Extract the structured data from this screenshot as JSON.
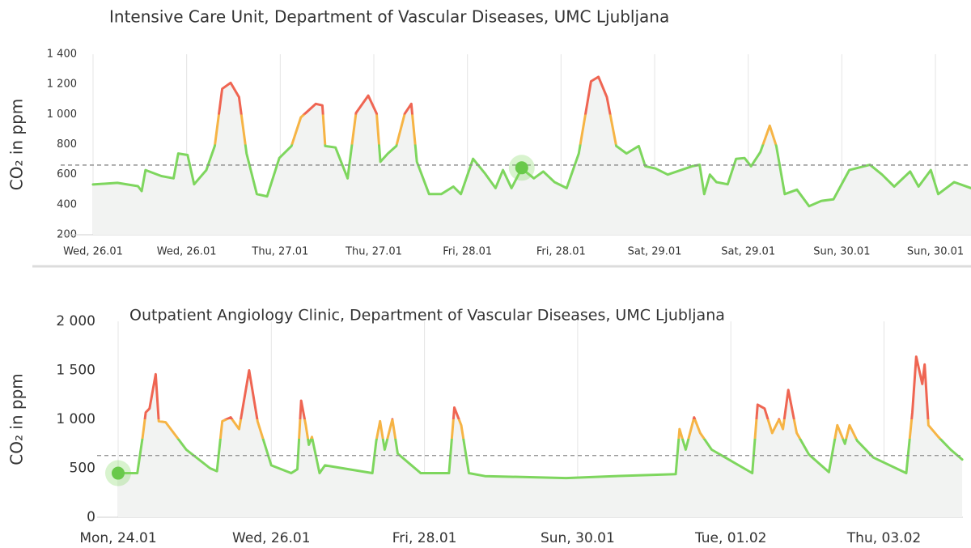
{
  "chart_data": [
    {
      "type": "line",
      "title": "Intensive Care Unit, Department of Vascular Diseases, UMC Ljubljana",
      "y_label": "CO₂ in ppm",
      "x": [
        0,
        0.26,
        0.48,
        0.52,
        0.56,
        0.73,
        0.86,
        0.91,
        1.01,
        1.08,
        1.21,
        1.3,
        1.38,
        1.47,
        1.56,
        1.64,
        1.75,
        1.86,
        1.99,
        2.12,
        2.22,
        2.38,
        2.45,
        2.48,
        2.59,
        2.72,
        2.81,
        2.94,
        3.03,
        3.07,
        3.15,
        3.24,
        3.33,
        3.4,
        3.46,
        3.59,
        3.72,
        3.85,
        3.93,
        4.06,
        4.19,
        4.3,
        4.38,
        4.47,
        4.58,
        4.71,
        4.81,
        4.93,
        5.06,
        5.19,
        5.32,
        5.4,
        5.49,
        5.59,
        5.7,
        5.83,
        5.9,
        6.01,
        6.14,
        6.4,
        6.48,
        6.53,
        6.59,
        6.66,
        6.78,
        6.87,
        6.96,
        7.03,
        7.13,
        7.23,
        7.3,
        7.39,
        7.52,
        7.65,
        7.78,
        7.91,
        8.08,
        8.3,
        8.43,
        8.56,
        8.73,
        8.82,
        8.95,
        9.03,
        9.2,
        9.38
      ],
      "values": [
        534,
        545,
        523,
        490,
        630,
        590,
        575,
        740,
        730,
        535,
        630,
        790,
        1170,
        1210,
        1115,
        740,
        470,
        455,
        710,
        790,
        980,
        1070,
        1060,
        790,
        780,
        575,
        1010,
        1125,
        1005,
        685,
        740,
        790,
        1005,
        1070,
        685,
        470,
        470,
        520,
        470,
        705,
        605,
        510,
        630,
        510,
        640,
        575,
        620,
        550,
        510,
        740,
        1220,
        1250,
        1115,
        790,
        740,
        790,
        655,
        640,
        600,
        655,
        665,
        470,
        600,
        550,
        535,
        705,
        710,
        655,
        750,
        925,
        790,
        470,
        500,
        390,
        425,
        435,
        630,
        665,
        600,
        520,
        620,
        520,
        630,
        470,
        550,
        510
      ],
      "color_bands": [
        {
          "max": 800,
          "color": "#7ed65e"
        },
        {
          "max": 1000,
          "color": "#f6b445"
        },
        {
          "max": 1400,
          "color": "#ef6552"
        }
      ],
      "area_color": "#f2f3f2",
      "reference_line": 663,
      "marker": {
        "x": 4.58,
        "value": 645
      },
      "xlim": [
        0,
        9.38
      ],
      "xticks": [
        {
          "value": 0,
          "label": "Wed, 26.01"
        },
        {
          "value": 1,
          "label": "Wed, 26.01"
        },
        {
          "value": 2,
          "label": "Thu, 27.01"
        },
        {
          "value": 3,
          "label": "Thu, 27.01"
        },
        {
          "value": 4,
          "label": "Fri, 28.01"
        },
        {
          "value": 5,
          "label": "Fri, 28.01"
        },
        {
          "value": 6,
          "label": "Sat, 29.01"
        },
        {
          "value": 7,
          "label": "Sat, 29.01"
        },
        {
          "value": 8,
          "label": "Sun, 30.01"
        },
        {
          "value": 9,
          "label": "Sun, 30.01"
        }
      ],
      "ylim": [
        200,
        1400
      ],
      "yticks": [
        200,
        400,
        600,
        800,
        {
          "value": 1000,
          "label": "1 000"
        },
        {
          "value": 1200,
          "label": "1 200"
        },
        {
          "value": 1400,
          "label": "1 400"
        }
      ],
      "grid": true
    },
    {
      "type": "line",
      "title": "Outpatient Angiology Clinic, Department of Vascular Diseases, UMC Ljubljana",
      "y_label": "CO₂ in ppm",
      "x": [
        0,
        0.25,
        0.32,
        0.36,
        0.41,
        0.49,
        0.53,
        0.62,
        0.89,
        1.2,
        1.29,
        1.36,
        1.47,
        1.58,
        1.71,
        1.82,
        2.0,
        2.26,
        2.34,
        2.39,
        2.45,
        2.49,
        2.53,
        2.63,
        2.7,
        3.32,
        3.37,
        3.42,
        3.48,
        3.58,
        3.65,
        3.95,
        4.32,
        4.39,
        4.48,
        4.58,
        4.79,
        5.85,
        6.48,
        7.28,
        7.33,
        7.41,
        7.52,
        7.6,
        7.75,
        8.28,
        8.35,
        8.44,
        8.54,
        8.63,
        8.68,
        8.75,
        8.86,
        9.02,
        9.28,
        9.39,
        9.49,
        9.55,
        9.65,
        9.86,
        10.29,
        10.37,
        10.42,
        10.5,
        10.53,
        10.58,
        10.71,
        10.87,
        11.02
      ],
      "values": [
        450,
        450,
        820,
        1070,
        1110,
        1460,
        980,
        970,
        690,
        500,
        470,
        980,
        1020,
        900,
        1500,
        980,
        530,
        450,
        490,
        1190,
        940,
        740,
        820,
        450,
        530,
        450,
        780,
        980,
        690,
        1000,
        650,
        450,
        450,
        1120,
        940,
        450,
        420,
        400,
        420,
        440,
        900,
        690,
        1020,
        860,
        690,
        450,
        1150,
        1110,
        860,
        1000,
        900,
        1300,
        860,
        640,
        460,
        940,
        750,
        940,
        780,
        610,
        450,
        1070,
        1640,
        1360,
        1560,
        940,
        820,
        690,
        590
      ],
      "color_bands": [
        {
          "max": 800,
          "color": "#7ed65e"
        },
        {
          "max": 1000,
          "color": "#f6b445"
        },
        {
          "max": 2000,
          "color": "#ef6552"
        }
      ],
      "area_color": "#f2f3f2",
      "reference_line": 630,
      "marker": {
        "x": 0,
        "value": 450
      },
      "xlim": [
        0,
        11.03
      ],
      "xticks": [
        {
          "value": 0,
          "label": "Mon, 24.01"
        },
        {
          "value": 2,
          "label": "Wed, 26.01"
        },
        {
          "value": 4,
          "label": "Fri, 28.01"
        },
        {
          "value": 6,
          "label": "Sun, 30.01"
        },
        {
          "value": 8,
          "label": "Tue, 01.02"
        },
        {
          "value": 10,
          "label": "Thu, 03.02"
        }
      ],
      "ylim": [
        0,
        2000
      ],
      "yticks": [
        0,
        500,
        {
          "value": 1000,
          "label": "1 000"
        },
        {
          "value": 1500,
          "label": "1 500"
        },
        {
          "value": 2000,
          "label": "2 000"
        }
      ],
      "grid": true
    }
  ]
}
